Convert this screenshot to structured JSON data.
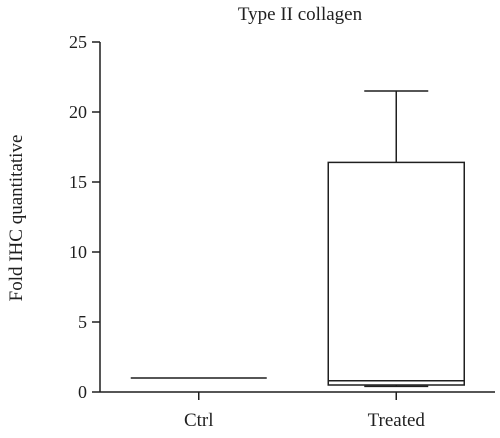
{
  "chart_data": {
    "type": "box",
    "title": "Type II collagen",
    "xlabel": "",
    "ylabel": "Fold IHC quantitative",
    "ylim": [
      0,
      25
    ],
    "yticks": [
      0,
      5,
      10,
      15,
      20,
      25
    ],
    "categories": [
      "Ctrl",
      "Treated"
    ],
    "boxes": [
      {
        "category": "Ctrl",
        "min": 1.0,
        "q1": 1.0,
        "median": 1.0,
        "q3": 1.0,
        "max": 1.0
      },
      {
        "category": "Treated",
        "min": 0.4,
        "q1": 0.5,
        "median": 0.8,
        "q3": 16.4,
        "max": 21.5
      }
    ],
    "grid": false,
    "legend": "none"
  }
}
